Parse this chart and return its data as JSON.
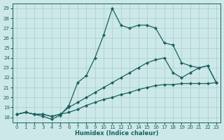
{
  "xlabel": "Humidex (Indice chaleur)",
  "bg_color": "#cce8e8",
  "grid_color": "#aacccc",
  "line_color": "#1a6060",
  "xlim": [
    -0.5,
    23.5
  ],
  "ylim": [
    17.5,
    29.5
  ],
  "xticks": [
    0,
    1,
    2,
    3,
    4,
    5,
    6,
    7,
    8,
    9,
    10,
    11,
    12,
    13,
    14,
    15,
    16,
    17,
    18,
    19,
    20,
    21,
    22,
    23
  ],
  "yticks": [
    18,
    19,
    20,
    21,
    22,
    23,
    24,
    25,
    26,
    27,
    28,
    29
  ],
  "line1_x": [
    0,
    1,
    2,
    3,
    4,
    5,
    6,
    7,
    8,
    9,
    10,
    11,
    12,
    13,
    14,
    15,
    16,
    17,
    18,
    19,
    20,
    21,
    22,
    23
  ],
  "line1_y": [
    18.3,
    18.5,
    18.3,
    18.3,
    18.1,
    18.3,
    18.5,
    18.8,
    19.2,
    19.5,
    19.8,
    20.0,
    20.3,
    20.5,
    20.8,
    21.0,
    21.2,
    21.3,
    21.3,
    21.4,
    21.4,
    21.4,
    21.4,
    21.5
  ],
  "line2_x": [
    0,
    1,
    2,
    3,
    4,
    5,
    6,
    7,
    8,
    9,
    10,
    11,
    12,
    13,
    14,
    15,
    16,
    17,
    18,
    19,
    20,
    21,
    22,
    23
  ],
  "line2_y": [
    18.3,
    18.5,
    18.3,
    18.3,
    18.1,
    18.3,
    19.0,
    19.5,
    20.0,
    20.5,
    21.0,
    21.5,
    22.0,
    22.5,
    23.0,
    23.5,
    23.8,
    24.0,
    22.5,
    22.0,
    22.5,
    23.0,
    23.2,
    21.5
  ],
  "line3_x": [
    0,
    1,
    2,
    3,
    4,
    5,
    6,
    7,
    8,
    9,
    10,
    11,
    12,
    13,
    14,
    15,
    16,
    17,
    18,
    19,
    20,
    21,
    22,
    23
  ],
  "line3_y": [
    18.3,
    18.5,
    18.3,
    18.1,
    17.8,
    18.2,
    19.2,
    21.5,
    22.2,
    24.0,
    26.3,
    29.0,
    27.3,
    27.0,
    27.3,
    27.3,
    27.0,
    25.5,
    25.3,
    23.5,
    23.2,
    23.0,
    23.2,
    21.5
  ],
  "markersize": 2.5,
  "linewidth": 0.9
}
